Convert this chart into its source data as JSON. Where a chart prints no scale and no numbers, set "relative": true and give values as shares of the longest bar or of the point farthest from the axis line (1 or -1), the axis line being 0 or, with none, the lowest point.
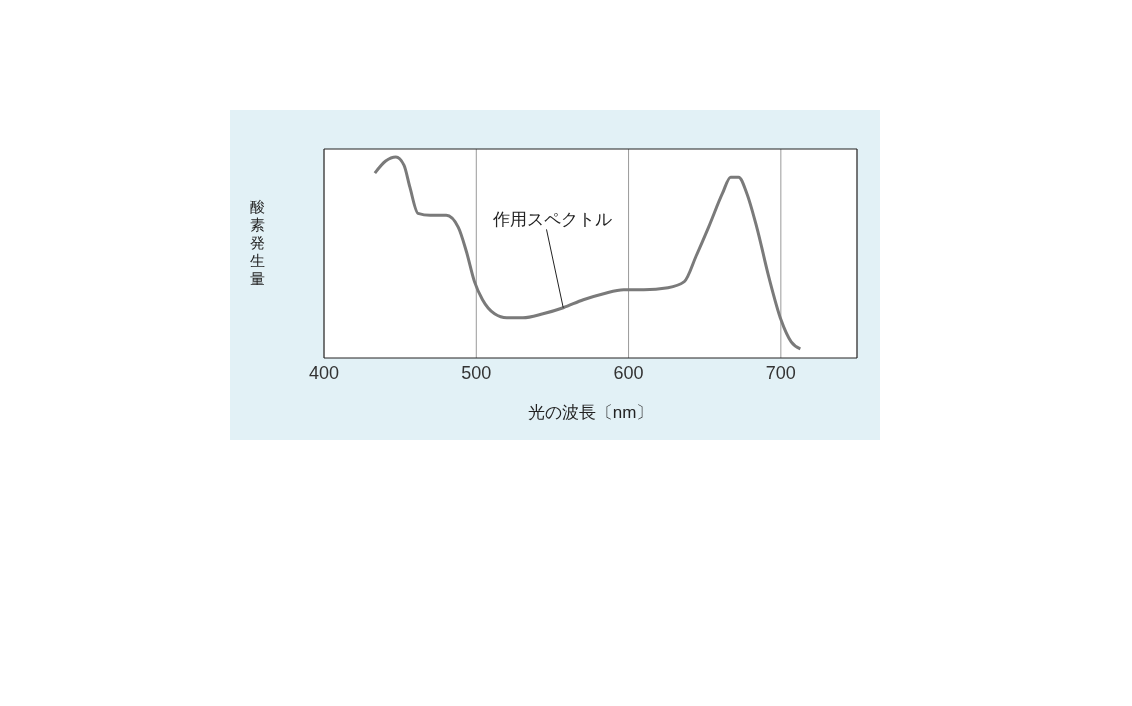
{
  "chart_data": {
    "type": "line",
    "relative": true,
    "xlabel": "光の波長〔nm〕",
    "ylabel": "酸素発生量",
    "x": [
      433.4,
      440.5,
      447.2,
      452.5,
      456.4,
      461.7,
      469.7,
      480.3,
      488.2,
      493.5,
      498.8,
      504.1,
      512,
      520,
      530.6,
      543.8,
      557.1,
      570.3,
      583.6,
      596.8,
      610,
      625.9,
      636.6,
      644.5,
      652.5,
      661.7,
      667,
      672.3,
      677.6,
      684.2,
      692.2,
      700.1,
      706.8,
      712.8
    ],
    "series": [
      {
        "color": "#7a7a7a",
        "values": [
          0.92,
          0.98,
          1,
          0.96,
          0.85,
          0.72,
          0.71,
          0.71,
          0.65,
          0.53,
          0.38,
          0.29,
          0.22,
          0.2,
          0.2,
          0.22,
          0.25,
          0.29,
          0.32,
          0.34,
          0.34,
          0.35,
          0.38,
          0.51,
          0.65,
          0.82,
          0.9,
          0.9,
          0.82,
          0.65,
          0.4,
          0.19,
          0.08,
          0.045
        ]
      }
    ],
    "xlim": [
      400,
      750
    ],
    "xticks": [
      400,
      500,
      600,
      700
    ],
    "grid": "x",
    "marker": "none",
    "line_style": "solid",
    "annotations": [
      {
        "text": "作用スペクトル",
        "x": 557.1,
        "y": 0.25
      }
    ]
  }
}
